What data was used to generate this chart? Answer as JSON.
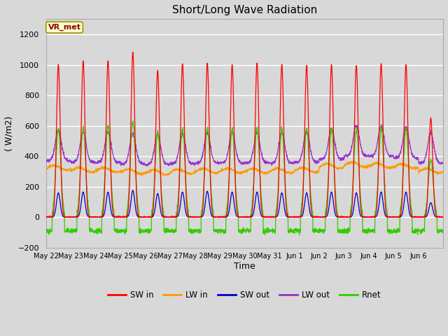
{
  "title": "Short/Long Wave Radiation",
  "xlabel": "Time",
  "ylabel": "( W/m2)",
  "ylim": [
    -200,
    1300
  ],
  "yticks": [
    -200,
    0,
    200,
    400,
    600,
    800,
    1000,
    1200
  ],
  "fig_facecolor": "#d8d8d8",
  "plot_bg_color": "#d8d8d8",
  "grid_color": "#ffffff",
  "series_colors": {
    "SW_in": "#ff0000",
    "LW_in": "#ff9900",
    "SW_out": "#0000cc",
    "LW_out": "#9933cc",
    "Rnet": "#33cc00"
  },
  "annotation_text": "VR_met",
  "num_days": 16,
  "x_tick_labels": [
    "May 22",
    "May 23",
    "May 24",
    "May 25",
    "May 26",
    "May 27",
    "May 28",
    "May 29",
    "May 30",
    "May 31",
    "Jun 1",
    "Jun 2",
    "Jun 3",
    "Jun 4",
    "Jun 5",
    "Jun 6"
  ],
  "SW_in_peaks": [
    1000,
    1025,
    1030,
    1080,
    960,
    1010,
    1010,
    1000,
    1010,
    1000,
    995,
    1000,
    995,
    1005,
    1000,
    650
  ],
  "LW_in_base": [
    325,
    310,
    310,
    300,
    295,
    300,
    305,
    305,
    305,
    305,
    310,
    335,
    345,
    340,
    335,
    305
  ],
  "SW_out_peaks": [
    160,
    165,
    165,
    175,
    155,
    165,
    170,
    165,
    165,
    160,
    160,
    165,
    160,
    165,
    165,
    95
  ],
  "LW_out_base": [
    370,
    360,
    360,
    350,
    345,
    350,
    355,
    355,
    355,
    355,
    362,
    382,
    402,
    400,
    390,
    355
  ],
  "Rnet_night": -90,
  "Rnet_day_factor": 0.58
}
